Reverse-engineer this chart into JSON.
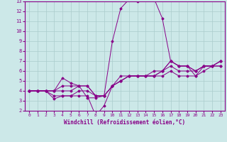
{
  "xlabel": "Windchill (Refroidissement éolien,°C)",
  "xlim": [
    -0.5,
    23.5
  ],
  "ylim": [
    2,
    13
  ],
  "xticks": [
    0,
    1,
    2,
    3,
    4,
    5,
    6,
    7,
    8,
    9,
    10,
    11,
    12,
    13,
    14,
    15,
    16,
    17,
    18,
    19,
    20,
    21,
    22,
    23
  ],
  "yticks": [
    2,
    3,
    4,
    5,
    6,
    7,
    8,
    9,
    10,
    11,
    12,
    13
  ],
  "bg_color": "#cce8e8",
  "line_color": "#880088",
  "grid_color": "#aacccc",
  "lines": [
    {
      "x": [
        0,
        1,
        2,
        3,
        4,
        5,
        6,
        7,
        8,
        9,
        10,
        11,
        12,
        13,
        14,
        15,
        16,
        17,
        18,
        19,
        20,
        21,
        22,
        23
      ],
      "y": [
        4.0,
        4.0,
        4.0,
        4.0,
        5.3,
        4.8,
        4.5,
        3.3,
        3.3,
        3.5,
        9.0,
        12.3,
        13.2,
        13.0,
        13.3,
        13.3,
        11.3,
        7.0,
        6.5,
        6.5,
        6.0,
        6.5,
        6.5,
        6.5
      ]
    },
    {
      "x": [
        0,
        1,
        2,
        3,
        4,
        5,
        6,
        7,
        8,
        9,
        10,
        11,
        12,
        13,
        14,
        15,
        16,
        17,
        18,
        19,
        20,
        21,
        22,
        23
      ],
      "y": [
        4.0,
        4.0,
        4.0,
        3.2,
        3.5,
        3.5,
        3.5,
        3.5,
        1.5,
        2.5,
        4.5,
        5.5,
        5.5,
        5.5,
        5.5,
        5.5,
        5.5,
        6.0,
        5.5,
        5.5,
        5.5,
        6.0,
        6.5,
        6.5
      ]
    },
    {
      "x": [
        0,
        1,
        2,
        3,
        4,
        5,
        6,
        7,
        8,
        9,
        10,
        11,
        12,
        13,
        14,
        15,
        16,
        17,
        18,
        19,
        20,
        21,
        22,
        23
      ],
      "y": [
        4.0,
        4.0,
        4.0,
        3.5,
        3.5,
        3.5,
        4.0,
        4.0,
        3.5,
        3.5,
        4.5,
        5.0,
        5.5,
        5.5,
        5.5,
        5.5,
        6.0,
        6.5,
        6.0,
        6.0,
        6.0,
        6.5,
        6.5,
        7.0
      ]
    },
    {
      "x": [
        0,
        1,
        2,
        3,
        4,
        5,
        6,
        7,
        8,
        9,
        10,
        11,
        12,
        13,
        14,
        15,
        16,
        17,
        18,
        19,
        20,
        21,
        22,
        23
      ],
      "y": [
        4.0,
        4.0,
        4.0,
        4.0,
        4.0,
        4.0,
        4.5,
        4.5,
        3.5,
        3.5,
        4.5,
        5.0,
        5.5,
        5.5,
        5.5,
        5.5,
        6.0,
        7.0,
        6.5,
        6.5,
        5.5,
        6.5,
        6.5,
        7.0
      ]
    },
    {
      "x": [
        0,
        1,
        2,
        3,
        4,
        5,
        6,
        7,
        8,
        9,
        10,
        11,
        12,
        13,
        14,
        15,
        16,
        17,
        18,
        19,
        20,
        21,
        22,
        23
      ],
      "y": [
        4.0,
        4.0,
        4.0,
        4.0,
        4.5,
        4.5,
        4.5,
        4.5,
        3.5,
        3.5,
        4.5,
        5.0,
        5.5,
        5.5,
        5.5,
        6.0,
        6.0,
        7.0,
        6.5,
        6.5,
        6.0,
        6.5,
        6.5,
        7.0
      ]
    }
  ]
}
